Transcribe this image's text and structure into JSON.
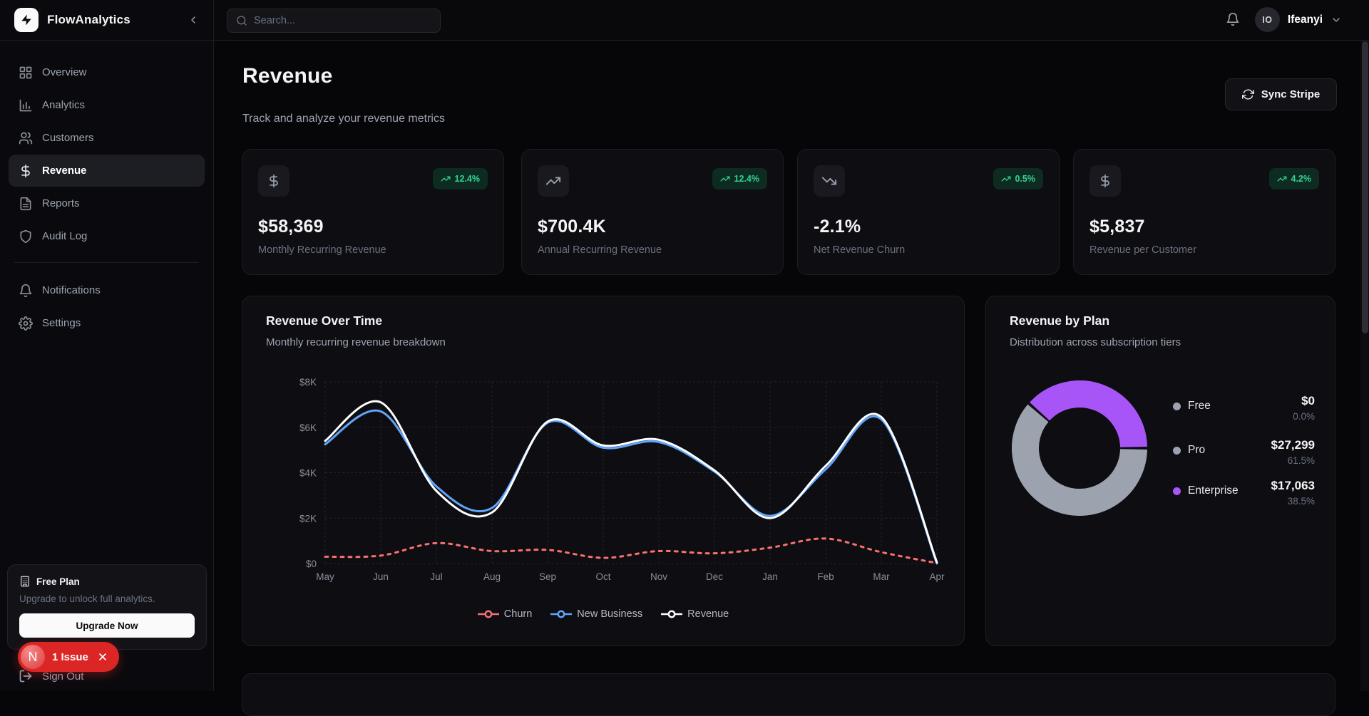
{
  "app": {
    "name": "FlowAnalytics"
  },
  "topbar": {
    "search_placeholder": "Search...",
    "user": {
      "initials": "IO",
      "name": "Ifeanyi"
    }
  },
  "sidebar": {
    "items": [
      {
        "label": "Overview",
        "icon": "grid-icon",
        "active": false
      },
      {
        "label": "Analytics",
        "icon": "bar-chart-icon",
        "active": false
      },
      {
        "label": "Customers",
        "icon": "users-icon",
        "active": false
      },
      {
        "label": "Revenue",
        "icon": "dollar-icon",
        "active": true
      },
      {
        "label": "Reports",
        "icon": "file-text-icon",
        "active": false
      },
      {
        "label": "Audit Log",
        "icon": "shield-icon",
        "active": false
      }
    ],
    "secondary_items": [
      {
        "label": "Notifications",
        "icon": "bell-icon"
      },
      {
        "label": "Settings",
        "icon": "gear-icon"
      }
    ],
    "plan_card": {
      "title": "Free Plan",
      "description": "Upgrade to unlock full analytics.",
      "cta": "Upgrade Now"
    },
    "sign_out_label": "Sign Out",
    "issue_badge": {
      "avatar_letter": "N",
      "label": "1 Issue"
    }
  },
  "page": {
    "title": "Revenue",
    "subtitle": "Track and analyze your revenue metrics",
    "sync_button": "Sync Stripe"
  },
  "metrics": [
    {
      "icon": "dollar-icon",
      "value": "$58,369",
      "label": "Monthly Recurring Revenue",
      "change": "12.4%"
    },
    {
      "icon": "trending-up-icon",
      "value": "$700.4K",
      "label": "Annual Recurring Revenue",
      "change": "12.4%"
    },
    {
      "icon": "trending-down-icon",
      "value": "-2.1%",
      "label": "Net Revenue Churn",
      "change": "0.5%"
    },
    {
      "icon": "dollar-icon",
      "value": "$5,837",
      "label": "Revenue per Customer",
      "change": "4.2%"
    }
  ],
  "colors": {
    "accent_green": "#34d399",
    "badge_bg": "#0d2b20",
    "churn_red": "#f87171",
    "new_business_blue": "#60a5fa",
    "revenue_white": "#ffffff",
    "enterprise_purple": "#a855f7",
    "plan_gray": "#9ca3af",
    "issue_red": "#dc2626",
    "grid_line": "#23232b",
    "axis_text": "#8b8f99"
  },
  "chart_data": [
    {
      "type": "line",
      "title": "Revenue Over Time",
      "subtitle": "Monthly recurring revenue breakdown",
      "x": [
        "May",
        "Jun",
        "Jul",
        "Aug",
        "Sep",
        "Oct",
        "Nov",
        "Dec",
        "Jan",
        "Feb",
        "Mar",
        "Apr"
      ],
      "ylim": [
        0,
        8000
      ],
      "y_ticks": [
        0,
        2000,
        4000,
        6000,
        8000
      ],
      "y_tick_labels": [
        "$0",
        "$2K",
        "$4K",
        "$6K",
        "$8K"
      ],
      "grid": true,
      "legend_position": "bottom",
      "series": [
        {
          "name": "Churn",
          "color": "#f87171",
          "style": "dashed",
          "values": [
            300,
            350,
            900,
            550,
            600,
            250,
            550,
            450,
            700,
            1100,
            500,
            20
          ]
        },
        {
          "name": "New Business",
          "color": "#60a5fa",
          "style": "solid",
          "values": [
            5250,
            6700,
            3400,
            2450,
            6200,
            5100,
            5350,
            4050,
            2100,
            4150,
            6350,
            0
          ]
        },
        {
          "name": "Revenue",
          "color": "#ffffff",
          "style": "solid",
          "values": [
            5400,
            7100,
            3200,
            2250,
            6250,
            5200,
            5450,
            4100,
            2000,
            4300,
            6450,
            50
          ]
        }
      ]
    },
    {
      "type": "pie",
      "title": "Revenue by Plan",
      "subtitle": "Distribution across subscription tiers",
      "start_angle_deg": 0,
      "inner_radius_ratio": 0.6,
      "slices": [
        {
          "name": "Free",
          "value": 0,
          "pct_value": 0.0,
          "amount": "$0",
          "pct": "0.0%",
          "color": "#9ca3af"
        },
        {
          "name": "Pro",
          "value": 27299,
          "pct_value": 61.5,
          "amount": "$27,299",
          "pct": "61.5%",
          "color": "#9ca3af"
        },
        {
          "name": "Enterprise",
          "value": 17063,
          "pct_value": 38.5,
          "amount": "$17,063",
          "pct": "38.5%",
          "color": "#a855f7"
        }
      ]
    }
  ]
}
